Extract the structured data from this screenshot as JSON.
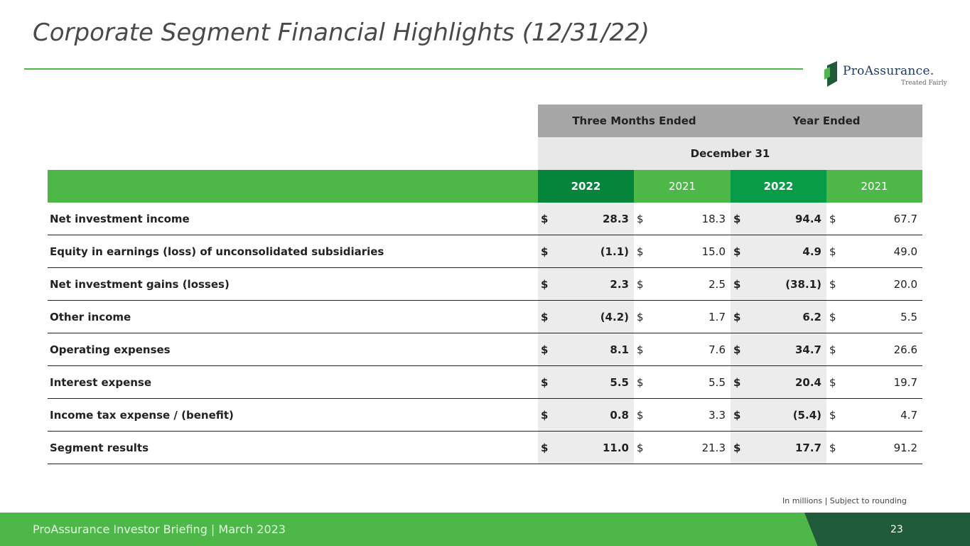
{
  "title": "Corporate Segment Financial Highlights (12/31/22)",
  "logo": {
    "brand": "ProAssurance.",
    "tagline": "Treated Fairly"
  },
  "table": {
    "group_headers": [
      "Three Months Ended",
      "Year Ended"
    ],
    "sub_header": "December 31",
    "years": [
      "2022",
      "2021",
      "2022",
      "2021"
    ],
    "rows": [
      {
        "label": "Net investment income",
        "values": [
          "28.3",
          "18.3",
          "94.4",
          "67.7"
        ]
      },
      {
        "label": "Equity in earnings (loss) of unconsolidated subsidiaries",
        "values": [
          "(1.1)",
          "15.0",
          "4.9",
          "49.0"
        ]
      },
      {
        "label": "Net investment gains (losses)",
        "values": [
          "2.3",
          "2.5",
          "(38.1)",
          "20.0"
        ]
      },
      {
        "label": "Other income",
        "values": [
          "(4.2)",
          "1.7",
          "6.2",
          "5.5"
        ]
      },
      {
        "label": "Operating expenses",
        "values": [
          "8.1",
          "7.6",
          "34.7",
          "26.6"
        ]
      },
      {
        "label": "Interest expense",
        "values": [
          "5.5",
          "5.5",
          "20.4",
          "19.7"
        ]
      },
      {
        "label": "Income tax expense / (benefit)",
        "values": [
          "0.8",
          "3.3",
          "(5.4)",
          "4.7"
        ]
      },
      {
        "label": "Segment results",
        "values": [
          "11.0",
          "21.3",
          "17.7",
          "91.2"
        ]
      }
    ],
    "currency_symbol": "$"
  },
  "footnote": "In millions | Subject to rounding",
  "footer": {
    "briefing": "ProAssurance Investor Briefing | March 2023",
    "page": "23"
  },
  "colors": {
    "accent_green": "#4db848",
    "dark_green_2022_q": "#05843c",
    "dark_green_2022_y": "#079c45",
    "footer_dark": "#1f5a3a"
  }
}
